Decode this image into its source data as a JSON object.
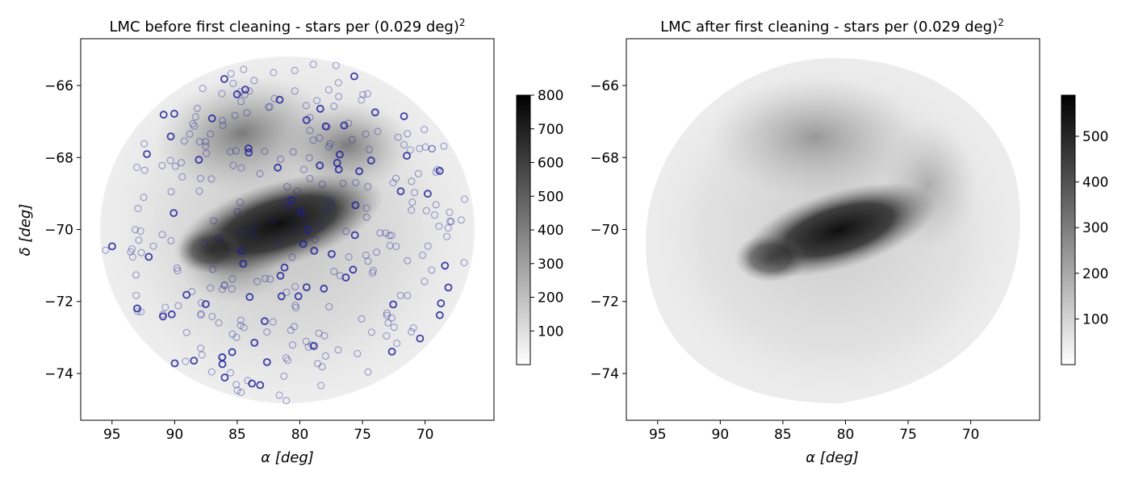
{
  "chart_data": [
    {
      "type": "heatmap",
      "title": "LMC before first cleaning - stars per (0.029 deg)",
      "title_superscript": "2",
      "xlabel": "α [deg]",
      "ylabel": "δ [deg]",
      "xlim": [
        97.5,
        64.5
      ],
      "ylim": [
        -75.3,
        -64.7
      ],
      "xticks": [
        95,
        90,
        85,
        80,
        75,
        70
      ],
      "xtick_labels": [
        "95",
        "90",
        "85",
        "80",
        "75",
        "70"
      ],
      "yticks": [
        -66,
        -68,
        -70,
        -72,
        -74
      ],
      "ytick_labels": [
        "−66",
        "−68",
        "−70",
        "−72",
        "−74"
      ],
      "colorbar": {
        "range": [
          0,
          800
        ],
        "ticks": [
          100,
          200,
          300,
          400,
          500,
          600,
          700,
          800
        ],
        "tick_labels": [
          "100",
          "200",
          "300",
          "400",
          "500",
          "600",
          "700",
          "800"
        ],
        "colormap": "greys"
      },
      "overlay": {
        "marker": "open-circle",
        "color": "#1f1f9a"
      }
    },
    {
      "type": "heatmap",
      "title": "LMC after first cleaning - stars per (0.029 deg)",
      "title_superscript": "2",
      "xlabel": "α [deg]",
      "ylabel": "",
      "xlim": [
        97.5,
        64.5
      ],
      "ylim": [
        -75.3,
        -64.7
      ],
      "xticks": [
        95,
        90,
        85,
        80,
        75,
        70
      ],
      "xtick_labels": [
        "95",
        "90",
        "85",
        "80",
        "75",
        "70"
      ],
      "yticks": [
        -66,
        -68,
        -70,
        -72,
        -74
      ],
      "ytick_labels": [
        "−66",
        "−68",
        "−70",
        "−72",
        "−74"
      ],
      "colorbar": {
        "range": [
          0,
          590
        ],
        "ticks": [
          100,
          200,
          300,
          400,
          500
        ],
        "tick_labels": [
          "100",
          "200",
          "300",
          "400",
          "500"
        ],
        "colormap": "greys"
      }
    }
  ]
}
